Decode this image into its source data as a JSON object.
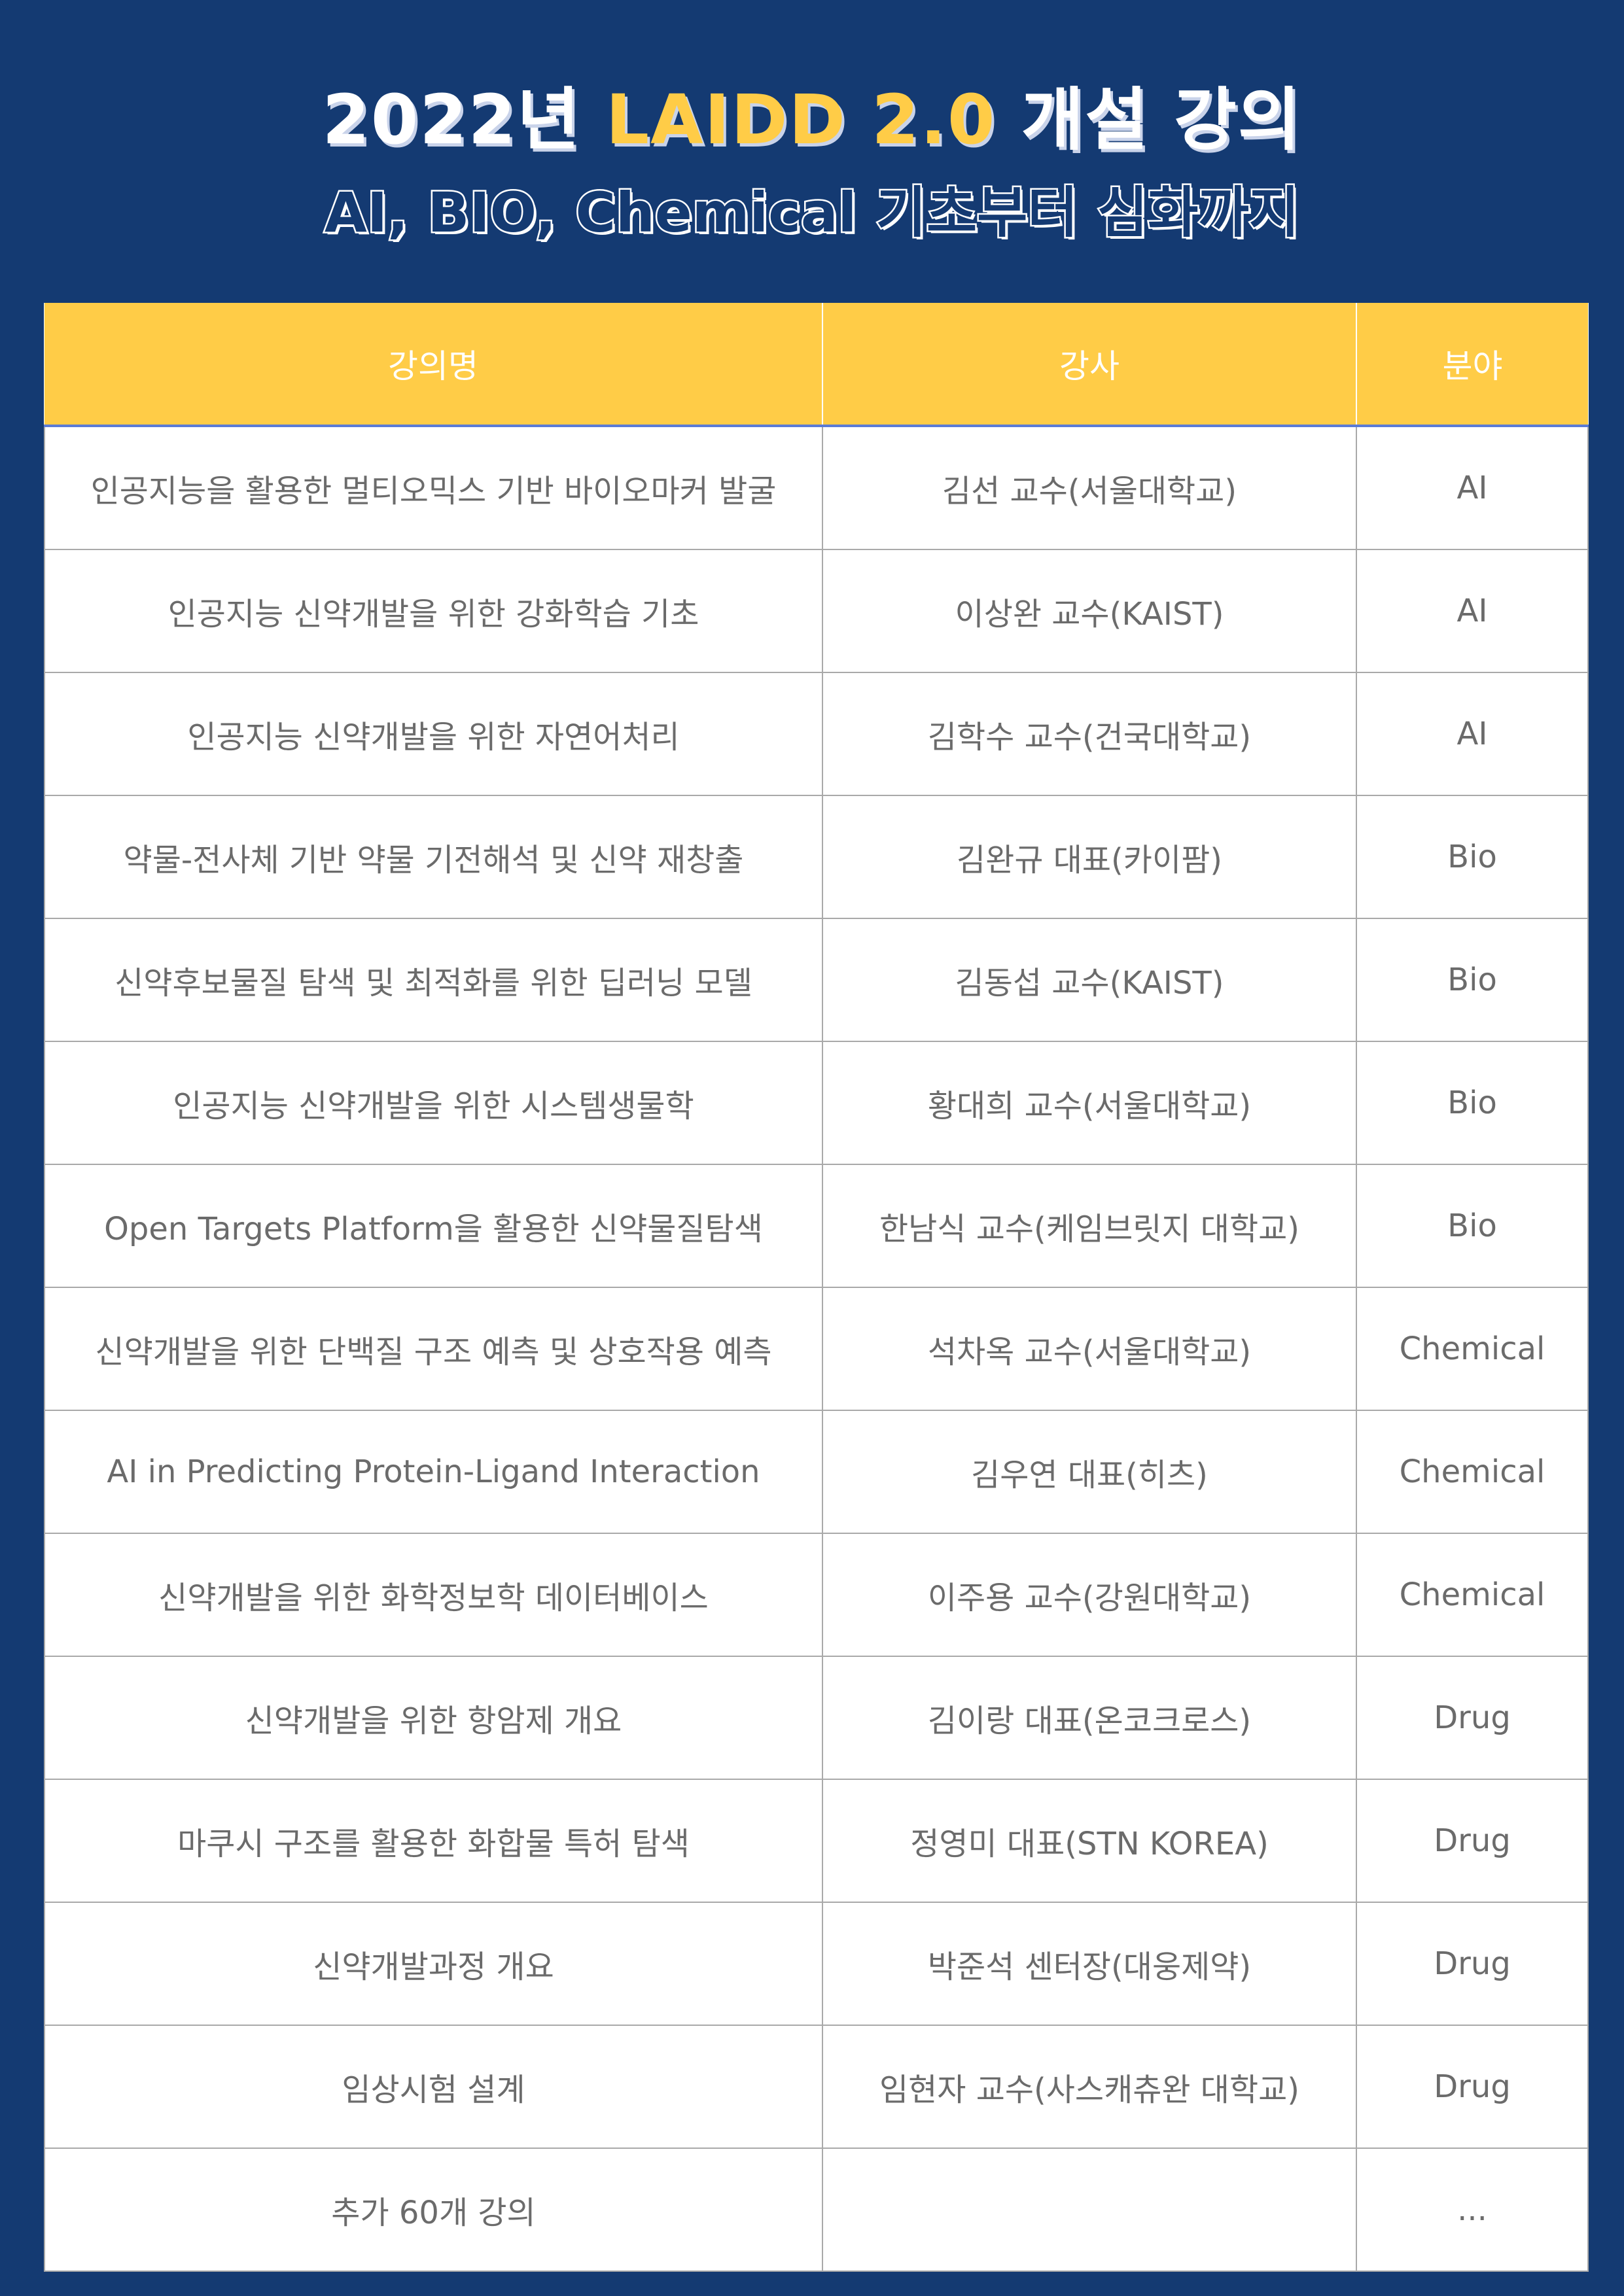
{
  "title": {
    "prefix": "2022년 ",
    "accent": "LAIDD 2.0",
    "suffix": " 개설 강의"
  },
  "subtitle": "AI, BIO, Chemical 기초부터 심화까지",
  "colors": {
    "background": "#143a72",
    "accent": "#ffcc47",
    "header_bg": "#ffcc47",
    "text": "#6b6b6b"
  },
  "table": {
    "headers": [
      "강의명",
      "강사",
      "분야"
    ],
    "rows": [
      [
        "인공지능을 활용한 멀티오믹스 기반 바이오마커 발굴",
        "김선 교수(서울대학교)",
        "AI"
      ],
      [
        "인공지능 신약개발을 위한 강화학습 기초",
        "이상완 교수(KAIST)",
        "AI"
      ],
      [
        "인공지능 신약개발을 위한 자연어처리",
        "김학수 교수(건국대학교)",
        "AI"
      ],
      [
        "약물-전사체 기반 약물 기전해석 및 신약 재창출",
        "김완규 대표(카이팜)",
        "Bio"
      ],
      [
        "신약후보물질 탐색 및 최적화를 위한 딥러닝 모델",
        "김동섭 교수(KAIST)",
        "Bio"
      ],
      [
        "인공지능 신약개발을 위한 시스템생물학",
        "황대희 교수(서울대학교)",
        "Bio"
      ],
      [
        "Open Targets Platform을 활용한 신약물질탐색",
        "한남식 교수(케임브릿지 대학교)",
        "Bio"
      ],
      [
        "신약개발을 위한 단백질 구조 예측 및 상호작용 예측",
        "석차옥 교수(서울대학교)",
        "Chemical"
      ],
      [
        "AI in Predicting Protein-Ligand Interaction",
        "김우연 대표(히츠)",
        "Chemical"
      ],
      [
        "신약개발을 위한 화학정보학 데이터베이스",
        "이주용 교수(강원대학교)",
        "Chemical"
      ],
      [
        "신약개발을 위한 항암제 개요",
        "김이랑 대표(온코크로스)",
        "Drug"
      ],
      [
        "마쿠시 구조를 활용한 화합물 특허 탐색",
        "정영미 대표(STN KOREA)",
        "Drug"
      ],
      [
        "신약개발과정 개요",
        "박준석 센터장(대웅제약)",
        "Drug"
      ],
      [
        "임상시험 설계",
        "임현자 교수(사스캐츄완 대학교)",
        "Drug"
      ],
      [
        "추가 60개 강의",
        "",
        "..."
      ]
    ]
  }
}
